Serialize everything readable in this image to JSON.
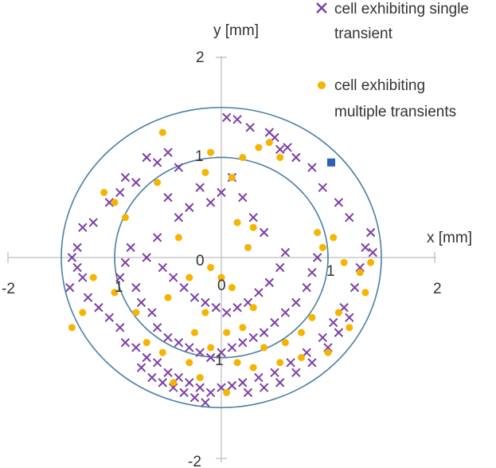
{
  "chart_data": {
    "type": "scatter",
    "xlabel": "x [mm]",
    "ylabel": "y [mm]",
    "xlim": [
      -2,
      2
    ],
    "ylim": [
      -2,
      2
    ],
    "grid": false,
    "legend_position": "top-right",
    "x_ticks": [
      "-2",
      "2"
    ],
    "y_ticks": [
      "2",
      "-2"
    ],
    "circle_labels": [
      "1",
      "1",
      "1",
      "1",
      "0",
      "0"
    ],
    "circles": [
      {
        "radius": 1.0,
        "color": "#4a7fa6"
      },
      {
        "radius": 1.5,
        "color": "#4a7fa6"
      }
    ],
    "highlight_point": {
      "x": 1.03,
      "y": 0.95,
      "color": "#2f5fb0"
    },
    "series": [
      {
        "name": "cell exhibiting single transient",
        "marker": "x",
        "color": "#7b3fa6",
        "points": [
          [
            0.05,
            1.4
          ],
          [
            0.15,
            1.38
          ],
          [
            0.27,
            1.3
          ],
          [
            0.5,
            1.2
          ],
          [
            0.55,
            1.08
          ],
          [
            0.62,
            1.1
          ],
          [
            0.7,
            1.0
          ],
          [
            0.85,
            0.9
          ],
          [
            0.45,
            1.25
          ],
          [
            -0.7,
            1.0
          ],
          [
            -0.6,
            0.95
          ],
          [
            -0.5,
            1.05
          ],
          [
            -0.4,
            0.9
          ],
          [
            -0.9,
            0.8
          ],
          [
            -0.8,
            0.75
          ],
          [
            -0.95,
            0.65
          ],
          [
            -1.05,
            0.55
          ],
          [
            -1.2,
            0.35
          ],
          [
            -1.3,
            0.3
          ],
          [
            -1.35,
            0.1
          ],
          [
            -1.4,
            0.0
          ],
          [
            -1.35,
            -0.1
          ],
          [
            -1.42,
            -0.3
          ],
          [
            -1.3,
            -0.2
          ],
          [
            -1.25,
            -0.4
          ],
          [
            -1.15,
            -0.5
          ],
          [
            -1.05,
            -0.6
          ],
          [
            -0.95,
            -0.7
          ],
          [
            -0.9,
            -0.85
          ],
          [
            -0.8,
            -0.9
          ],
          [
            -0.7,
            -1.0
          ],
          [
            -0.6,
            -1.05
          ],
          [
            -0.5,
            -1.15
          ],
          [
            -0.4,
            -1.2
          ],
          [
            -0.3,
            -1.25
          ],
          [
            -0.2,
            -1.3
          ],
          [
            -0.1,
            -1.35
          ],
          [
            0.0,
            -1.3
          ],
          [
            0.1,
            -1.28
          ],
          [
            0.2,
            -1.25
          ],
          [
            0.35,
            -1.2
          ],
          [
            0.5,
            -1.15
          ],
          [
            0.65,
            -1.05
          ],
          [
            0.8,
            -0.95
          ],
          [
            0.95,
            -0.8
          ],
          [
            1.05,
            -0.65
          ],
          [
            1.15,
            -0.5
          ],
          [
            1.25,
            -0.3
          ],
          [
            1.3,
            -0.1
          ],
          [
            1.35,
            0.1
          ],
          [
            1.4,
            0.25
          ],
          [
            1.42,
            0.05
          ],
          [
            1.1,
            0.55
          ],
          [
            1.2,
            0.4
          ],
          [
            0.95,
            0.7
          ],
          [
            -0.5,
            0.6
          ],
          [
            -0.4,
            0.4
          ],
          [
            -0.3,
            0.5
          ],
          [
            -0.2,
            0.7
          ],
          [
            -0.1,
            0.55
          ],
          [
            0.0,
            0.65
          ],
          [
            0.1,
            0.8
          ],
          [
            0.2,
            0.6
          ],
          [
            0.3,
            0.4
          ],
          [
            0.4,
            0.25
          ],
          [
            -0.6,
            0.2
          ],
          [
            -0.7,
            0.0
          ],
          [
            -0.55,
            -0.1
          ],
          [
            -0.45,
            -0.2
          ],
          [
            -0.35,
            -0.3
          ],
          [
            -0.25,
            -0.4
          ],
          [
            -0.15,
            -0.45
          ],
          [
            -0.05,
            -0.5
          ],
          [
            0.05,
            -0.55
          ],
          [
            0.15,
            -0.5
          ],
          [
            0.25,
            -0.45
          ],
          [
            0.35,
            -0.35
          ],
          [
            0.45,
            -0.25
          ],
          [
            0.55,
            -0.1
          ],
          [
            0.6,
            0.05
          ],
          [
            -0.8,
            -0.3
          ],
          [
            -0.75,
            -0.45
          ],
          [
            -0.65,
            -0.55
          ],
          [
            -0.6,
            -0.7
          ],
          [
            -0.5,
            -0.8
          ],
          [
            -0.4,
            -0.85
          ],
          [
            -0.3,
            -0.9
          ],
          [
            -0.2,
            -0.95
          ],
          [
            -0.1,
            -1.0
          ],
          [
            0.0,
            -0.95
          ],
          [
            0.1,
            -0.9
          ],
          [
            0.2,
            -0.85
          ],
          [
            0.3,
            -0.8
          ],
          [
            0.4,
            -0.75
          ],
          [
            0.5,
            -0.65
          ],
          [
            0.6,
            -0.55
          ],
          [
            0.7,
            -0.45
          ],
          [
            0.8,
            -0.3
          ],
          [
            0.85,
            -0.15
          ],
          [
            0.9,
            0.0
          ],
          [
            -0.85,
            0.1
          ],
          [
            -0.9,
            -0.05
          ],
          [
            -0.95,
            -0.2
          ],
          [
            -0.75,
            -1.1
          ],
          [
            -0.65,
            -1.2
          ],
          [
            -0.55,
            -1.25
          ],
          [
            -0.45,
            -1.3
          ],
          [
            -0.35,
            -1.35
          ],
          [
            -0.25,
            -1.4
          ],
          [
            -0.15,
            -1.45
          ],
          [
            0.25,
            -1.35
          ],
          [
            0.4,
            -1.3
          ],
          [
            0.55,
            -1.25
          ],
          [
            0.7,
            -1.15
          ],
          [
            0.85,
            -1.05
          ],
          [
            1.0,
            -0.9
          ],
          [
            1.1,
            -0.75
          ],
          [
            1.2,
            -0.6
          ]
        ]
      },
      {
        "name": "cell exhibiting multiple transients",
        "marker": "circle",
        "color": "#f5b400",
        "points": [
          [
            -0.55,
            1.25
          ],
          [
            -0.1,
            1.05
          ],
          [
            0.2,
            1.0
          ],
          [
            0.35,
            1.1
          ],
          [
            0.45,
            1.15
          ],
          [
            0.55,
            1.0
          ],
          [
            0.1,
            0.8
          ],
          [
            -0.15,
            0.85
          ],
          [
            -1.1,
            0.65
          ],
          [
            -1.0,
            0.55
          ],
          [
            -0.9,
            0.4
          ],
          [
            -0.6,
            0.75
          ],
          [
            0.15,
            0.35
          ],
          [
            0.25,
            0.1
          ],
          [
            0.9,
            0.25
          ],
          [
            0.95,
            0.1
          ],
          [
            1.05,
            0.2
          ],
          [
            1.15,
            -0.05
          ],
          [
            1.3,
            -0.15
          ],
          [
            1.4,
            -0.05
          ],
          [
            1.35,
            -0.35
          ],
          [
            1.1,
            -0.55
          ],
          [
            0.85,
            -0.6
          ],
          [
            0.75,
            -0.75
          ],
          [
            -1.2,
            -0.2
          ],
          [
            -1.0,
            -0.35
          ],
          [
            -0.8,
            -0.55
          ],
          [
            -0.5,
            -0.4
          ],
          [
            -0.3,
            -0.2
          ],
          [
            -0.1,
            -0.1
          ],
          [
            0.1,
            -0.3
          ],
          [
            0.3,
            -0.5
          ],
          [
            -0.7,
            -0.85
          ],
          [
            -0.55,
            -0.95
          ],
          [
            -0.3,
            -1.05
          ],
          [
            -0.1,
            -0.9
          ],
          [
            0.05,
            -0.75
          ],
          [
            0.2,
            -0.7
          ],
          [
            0.4,
            -0.9
          ],
          [
            0.6,
            -0.85
          ],
          [
            -0.45,
            -1.25
          ],
          [
            -0.2,
            -1.2
          ],
          [
            0.05,
            -1.35
          ],
          [
            0.3,
            -1.1
          ],
          [
            0.55,
            -1.05
          ],
          [
            0.75,
            -1.0
          ],
          [
            -1.4,
            -0.7
          ],
          [
            -1.3,
            -0.55
          ],
          [
            1.2,
            -0.7
          ],
          [
            1.0,
            -0.95
          ],
          [
            -0.15,
            -0.55
          ],
          [
            0.0,
            -0.2
          ],
          [
            -0.4,
            0.2
          ],
          [
            0.3,
            0.3
          ],
          [
            -0.25,
            -0.75
          ],
          [
            0.15,
            -1.05
          ]
        ]
      }
    ]
  }
}
